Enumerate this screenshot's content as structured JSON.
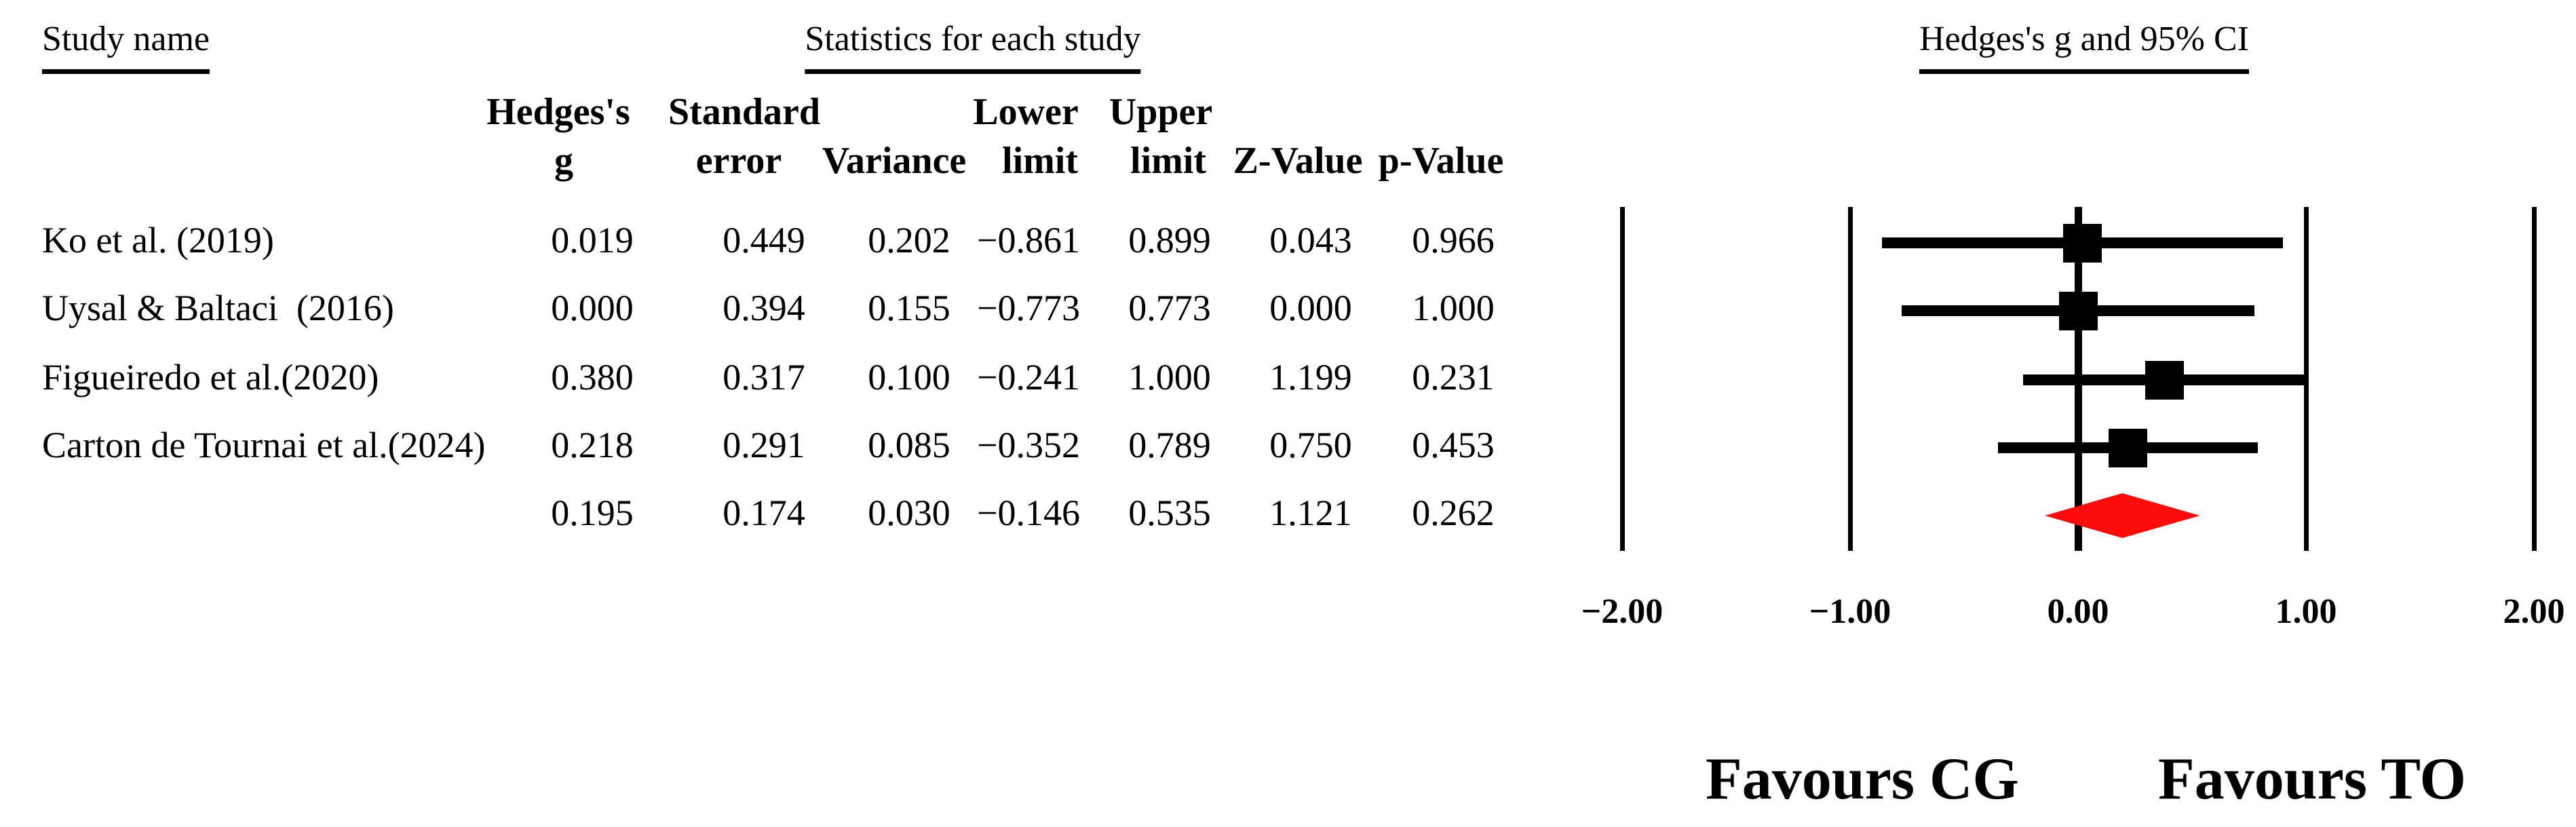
{
  "titles": {
    "study_name": "Study name",
    "statistics": "Statistics for each study",
    "ci": "Hedges's g and 95% CI"
  },
  "stats_table": {
    "header_line1": [
      "Hedges's",
      "Standard",
      "Lower",
      "Upper"
    ],
    "header_line2": [
      "g",
      "error",
      "Variance",
      "limit",
      "limit",
      "Z-Value",
      "p-Value"
    ],
    "rows": [
      {
        "name": "Ko et al. (2019)",
        "values": [
          "0.019",
          "0.449",
          "0.202",
          "−0.861",
          "0.899",
          "0.043",
          "0.966"
        ]
      },
      {
        "name": "Uysal & Baltaci  (2016)",
        "values": [
          "0.000",
          "0.394",
          "0.155",
          "−0.773",
          "0.773",
          "0.000",
          "1.000"
        ]
      },
      {
        "name": "Figueiredo et al.(2020)",
        "values": [
          "0.380",
          "0.317",
          "0.100",
          "−0.241",
          "1.000",
          "1.199",
          "0.231"
        ]
      },
      {
        "name": "Carton de Tournai et al.(2024)",
        "values": [
          "0.218",
          "0.291",
          "0.085",
          "−0.352",
          "0.789",
          "0.750",
          "0.453"
        ]
      },
      {
        "name": "",
        "values": [
          "0.195",
          "0.174",
          "0.030",
          "−0.146",
          "0.535",
          "1.121",
          "0.262"
        ]
      }
    ]
  },
  "chart_data": {
    "type": "forest",
    "title": "Hedges's g and 95% CI",
    "x_ticks": [
      -2,
      -1,
      0,
      1,
      2
    ],
    "x_tick_labels": [
      "−2.00",
      "−1.00",
      "0.00",
      "1.00",
      "2.00"
    ],
    "xlim": [
      -2,
      2
    ],
    "studies": [
      {
        "name": "Ko et al. (2019)",
        "g": 0.019,
        "lower": -0.861,
        "upper": 0.899
      },
      {
        "name": "Uysal & Baltaci  (2016)",
        "g": 0.0,
        "lower": -0.773,
        "upper": 0.773
      },
      {
        "name": "Figueiredo et al.(2020)",
        "g": 0.38,
        "lower": -0.241,
        "upper": 1.0
      },
      {
        "name": "Carton de Tournai et al.(2024)",
        "g": 0.218,
        "lower": -0.352,
        "upper": 0.789
      }
    ],
    "summary": {
      "g": 0.195,
      "lower": -0.146,
      "upper": 0.535
    },
    "favours_left": "Favours CG",
    "favours_right": "Favours TO",
    "marker_color": "#000000",
    "diamond_color": "#fc0d0c"
  }
}
